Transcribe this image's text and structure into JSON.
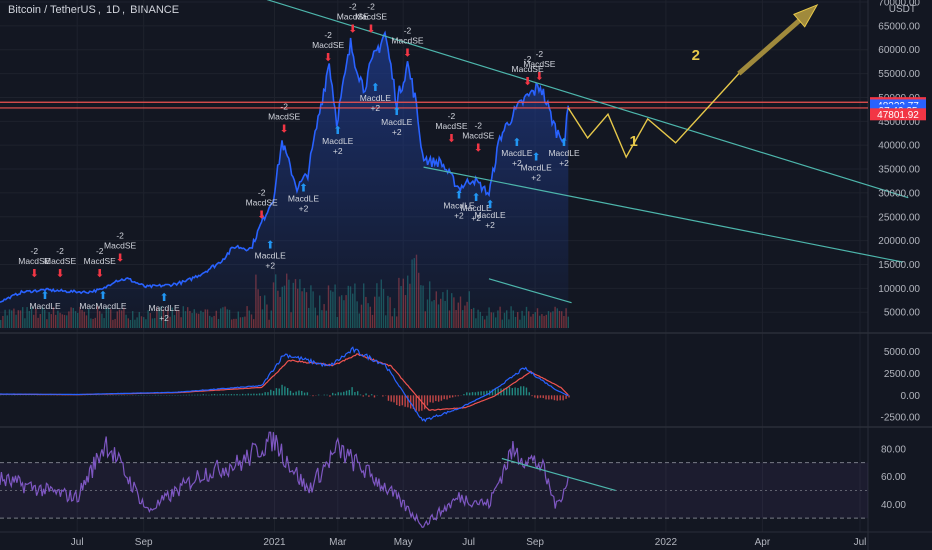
{
  "header": {
    "symbol": "Bitcoin / TetherUS",
    "interval": "1D",
    "exchange": "BINANCE",
    "sep": ",",
    "sep2": ","
  },
  "colors": {
    "background": "#131722",
    "price_line": "#2962ff",
    "area_fill": "#1e3a8a",
    "resistance": "#ef5350",
    "trendline": "#4db6ac",
    "projection": "#e6c84a",
    "arrow_projection": "#a08a3c",
    "macd": "#2962ff",
    "signal": "#ef5350",
    "hist_pos": "#26a69a",
    "hist_neg": "#ef5350",
    "rsi": "#7e57c2",
    "up_arrow": "#2196f3",
    "down_arrow": "#f23645"
  },
  "price_axis": {
    "unit": "USDT",
    "ticks": [
      "70000.00",
      "65000.00",
      "60000.00",
      "55000.00",
      "50000.00",
      "45000.00",
      "40000.00",
      "35000.00",
      "30000.00",
      "25000.00",
      "20000.00",
      "15000.00",
      "10000.00",
      "5000.00"
    ],
    "tick_values": [
      70000,
      65000,
      60000,
      55000,
      50000,
      45000,
      40000,
      35000,
      30000,
      25000,
      20000,
      15000,
      10000,
      5000
    ],
    "labels": [
      {
        "text": "48808.00",
        "value": 48808,
        "bg": "#f23645"
      },
      {
        "text": "48322.77",
        "value": 48322.77,
        "bg": "#2962ff"
      },
      {
        "text": "07:40:25",
        "value": 47280,
        "bg": "#2962ff"
      },
      {
        "text": "47801.92",
        "value": 46470,
        "bg": "#f23645"
      }
    ]
  },
  "macd_axis": {
    "ticks": [
      "5000.00",
      "2500.00",
      "0.00",
      "-2500.00"
    ],
    "tick_values": [
      5000,
      2500,
      0,
      -2500
    ]
  },
  "rsi_axis": {
    "ticks": [
      "80.00",
      "60.00",
      "40.00"
    ],
    "tick_values": [
      80,
      60,
      40
    ]
  },
  "time_axis": {
    "labels": [
      "Jul",
      "Sep",
      "2021",
      "Mar",
      "May",
      "Jul",
      "Sep",
      "2022",
      "Apr",
      "Jul"
    ],
    "dates": [
      "2020-07-01",
      "2020-09-01",
      "2021-01-01",
      "2021-03-01",
      "2021-05-01",
      "2021-07-01",
      "2021-09-01",
      "2022-01-01",
      "2022-04-01",
      "2022-07-01"
    ]
  },
  "projection_labels": {
    "wave1": "1",
    "wave2": "2"
  },
  "signals": [
    {
      "text": "-2",
      "kind": "sell",
      "date": "2020-05-22",
      "price": 11800
    },
    {
      "text": "MacdSE",
      "kind": "sell",
      "date": "2020-05-22",
      "price": 11800
    },
    {
      "text": "-2",
      "kind": "sell",
      "date": "2020-06-15",
      "price": 11800
    },
    {
      "text": "MacdSE",
      "kind": "sell",
      "date": "2020-06-15",
      "price": 11800
    },
    {
      "text": "-2",
      "kind": "sell",
      "date": "2020-07-22",
      "price": 11800
    },
    {
      "text": "MacdSE",
      "kind": "sell",
      "date": "2020-07-22",
      "price": 11800
    },
    {
      "text": "-2",
      "kind": "sell",
      "date": "2020-08-10",
      "price": 15000
    },
    {
      "text": "MacdSE",
      "kind": "sell",
      "date": "2020-08-10",
      "price": 15000
    },
    {
      "text": "MacdLE",
      "kind": "buy",
      "date": "2020-06-01",
      "price": 9500
    },
    {
      "text": "MacMacdLE",
      "kind": "buy",
      "date": "2020-07-25",
      "price": 9500
    },
    {
      "text": "MacdLE",
      "kind": "buy",
      "date": "2020-09-20",
      "price": 9000
    },
    {
      "text": "+2",
      "kind": "buy",
      "date": "2020-09-20",
      "price": 9000
    },
    {
      "text": "-2",
      "kind": "sell",
      "date": "2020-12-20",
      "price": 24000
    },
    {
      "text": "MacdSE",
      "kind": "sell",
      "date": "2020-12-20",
      "price": 24000
    },
    {
      "text": "MacdLE",
      "kind": "buy",
      "date": "2020-12-28",
      "price": 20000
    },
    {
      "text": "+2",
      "kind": "buy",
      "date": "2020-12-28",
      "price": 20000
    },
    {
      "text": "-2",
      "kind": "sell",
      "date": "2021-01-10",
      "price": 42000
    },
    {
      "text": "MacdSE",
      "kind": "sell",
      "date": "2021-01-10",
      "price": 42000
    },
    {
      "text": "MacdLE",
      "kind": "buy",
      "date": "2021-01-28",
      "price": 32000
    },
    {
      "text": "+2",
      "kind": "buy",
      "date": "2021-01-28",
      "price": 32000
    },
    {
      "text": "-2",
      "kind": "sell",
      "date": "2021-02-20",
      "price": 57000
    },
    {
      "text": "MacdSE",
      "kind": "sell",
      "date": "2021-02-20",
      "price": 57000
    },
    {
      "text": "MacdLE",
      "kind": "buy",
      "date": "2021-03-01",
      "price": 44000
    },
    {
      "text": "+2",
      "kind": "buy",
      "date": "2021-03-01",
      "price": 44000
    },
    {
      "text": "-2",
      "kind": "sell",
      "date": "2021-03-15",
      "price": 63000
    },
    {
      "text": "MacdSE",
      "kind": "sell",
      "date": "2021-03-15",
      "price": 63000
    },
    {
      "text": "-2",
      "kind": "sell",
      "date": "2021-04-01",
      "price": 63000
    },
    {
      "text": "MacdSE",
      "kind": "sell",
      "date": "2021-04-01",
      "price": 63000
    },
    {
      "text": "MacdLE",
      "kind": "buy",
      "date": "2021-04-05",
      "price": 53000
    },
    {
      "text": "+2",
      "kind": "buy",
      "date": "2021-04-05",
      "price": 53000
    },
    {
      "text": "MacdLE",
      "kind": "buy",
      "date": "2021-04-25",
      "price": 48000
    },
    {
      "text": "+2",
      "kind": "buy",
      "date": "2021-04-25",
      "price": 48000
    },
    {
      "text": "-2",
      "kind": "sell",
      "date": "2021-05-05",
      "price": 58000
    },
    {
      "text": "MacdSE",
      "kind": "sell",
      "date": "2021-05-05",
      "price": 58000
    },
    {
      "text": "-2",
      "kind": "sell",
      "date": "2021-06-15",
      "price": 40000
    },
    {
      "text": "MacdSE",
      "kind": "sell",
      "date": "2021-06-15",
      "price": 40000
    },
    {
      "text": "-2",
      "kind": "sell",
      "date": "2021-07-10",
      "price": 38000
    },
    {
      "text": "MacdSE",
      "kind": "sell",
      "date": "2021-07-10",
      "price": 38000
    },
    {
      "text": "MacdLE",
      "kind": "buy",
      "date": "2021-06-22",
      "price": 30500
    },
    {
      "text": "+2",
      "kind": "buy",
      "date": "2021-06-22",
      "price": 30500
    },
    {
      "text": "MacdLE",
      "kind": "buy",
      "date": "2021-07-08",
      "price": 30000
    },
    {
      "text": "+2",
      "kind": "buy",
      "date": "2021-07-08",
      "price": 30000
    },
    {
      "text": "MacdLE",
      "kind": "buy",
      "date": "2021-07-21",
      "price": 28500
    },
    {
      "text": "+2",
      "kind": "buy",
      "date": "2021-07-21",
      "price": 28500
    },
    {
      "text": "-2",
      "kind": "sell",
      "date": "2021-08-25",
      "price": 52000
    },
    {
      "text": "MacdSE",
      "kind": "sell",
      "date": "2021-08-25",
      "price": 52000
    },
    {
      "text": "-2",
      "kind": "sell",
      "date": "2021-09-05",
      "price": 53000
    },
    {
      "text": "MacdSE",
      "kind": "sell",
      "date": "2021-09-05",
      "price": 53000
    },
    {
      "text": "MacdLE",
      "kind": "buy",
      "date": "2021-08-15",
      "price": 41500
    },
    {
      "text": "+2",
      "kind": "buy",
      "date": "2021-08-15",
      "price": 41500
    },
    {
      "text": "MacdLE",
      "kind": "buy",
      "date": "2021-09-02",
      "price": 38500
    },
    {
      "text": "+2",
      "kind": "buy",
      "date": "2021-09-02",
      "price": 38500
    },
    {
      "text": "MacdLE",
      "kind": "buy",
      "date": "2021-09-28",
      "price": 41500
    },
    {
      "text": "+2",
      "kind": "buy",
      "date": "2021-09-28",
      "price": 41500
    }
  ],
  "chart_data": {
    "type": "line",
    "title": "Bitcoin / TetherUS, 1D, BINANCE",
    "price_range": [
      0,
      72000
    ],
    "price_series": {
      "x": [
        "2020-04-20",
        "2020-05-10",
        "2020-06-01",
        "2020-06-20",
        "2020-07-10",
        "2020-07-25",
        "2020-08-05",
        "2020-08-17",
        "2020-09-03",
        "2020-09-25",
        "2020-10-10",
        "2020-10-25",
        "2020-11-10",
        "2020-11-25",
        "2020-12-10",
        "2020-12-20",
        "2020-12-31",
        "2021-01-08",
        "2021-01-22",
        "2021-02-01",
        "2021-02-12",
        "2021-02-21",
        "2021-02-28",
        "2021-03-13",
        "2021-03-25",
        "2021-04-05",
        "2021-04-14",
        "2021-04-25",
        "2021-05-05",
        "2021-05-12",
        "2021-05-19",
        "2021-05-25",
        "2021-06-05",
        "2021-06-22",
        "2021-07-05",
        "2021-07-20",
        "2021-07-30",
        "2021-08-10",
        "2021-08-22",
        "2021-09-06",
        "2021-09-21",
        "2021-09-29",
        "2021-10-02"
      ],
      "y": [
        7200,
        9200,
        9700,
        9400,
        9200,
        9800,
        11600,
        12000,
        10300,
        10700,
        11400,
        13100,
        15300,
        18800,
        18300,
        23800,
        29000,
        40700,
        31000,
        34000,
        47000,
        57500,
        45000,
        61000,
        52000,
        59000,
        63500,
        49000,
        57000,
        50000,
        38000,
        36500,
        36500,
        31000,
        33000,
        29800,
        41500,
        46000,
        49500,
        52500,
        42800,
        41500,
        48300
      ]
    },
    "volume_range": [
      0,
      60000
    ],
    "macd_range": [
      -3500,
      7000
    ],
    "macd_series": {
      "name": "MACD",
      "x": [
        "2020-04-20",
        "2020-07-01",
        "2020-10-01",
        "2020-12-20",
        "2021-01-10",
        "2021-02-21",
        "2021-03-15",
        "2021-04-14",
        "2021-05-19",
        "2021-06-22",
        "2021-07-20",
        "2021-08-22",
        "2021-09-21",
        "2021-10-02"
      ],
      "y": [
        150,
        100,
        350,
        1100,
        4700,
        3300,
        5200,
        3500,
        -2900,
        -1500,
        200,
        3100,
        600,
        -50
      ]
    },
    "signal_series": {
      "name": "Signal",
      "x": [
        "2020-04-20",
        "2020-07-01",
        "2020-10-01",
        "2020-12-20",
        "2021-01-15",
        "2021-02-25",
        "2021-03-20",
        "2021-04-20",
        "2021-05-25",
        "2021-06-28",
        "2021-07-25",
        "2021-08-28",
        "2021-09-25",
        "2021-10-02"
      ],
      "y": [
        120,
        80,
        300,
        900,
        4000,
        3400,
        4700,
        3300,
        -1700,
        -1400,
        -100,
        2700,
        900,
        50
      ]
    },
    "rsi_range": [
      20,
      95
    ],
    "rsi_band": [
      30,
      70
    ],
    "rsi_series": {
      "name": "RSI",
      "x": [
        "2020-04-20",
        "2020-06-01",
        "2020-07-01",
        "2020-07-28",
        "2020-09-05",
        "2020-10-25",
        "2020-12-01",
        "2020-12-31",
        "2021-01-10",
        "2021-02-01",
        "2021-03-01",
        "2021-04-15",
        "2021-05-20",
        "2021-06-22",
        "2021-07-20",
        "2021-08-10",
        "2021-09-07",
        "2021-09-21",
        "2021-10-02"
      ],
      "y": [
        58,
        50,
        45,
        85,
        35,
        62,
        70,
        88,
        75,
        50,
        80,
        52,
        25,
        45,
        40,
        78,
        68,
        38,
        60
      ]
    },
    "trendlines": [
      {
        "from": [
          "2020-12-25",
          70500
        ],
        "to": [
          "2022-08-15",
          29000
        ]
      },
      {
        "from": [
          "2021-05-20",
          35400
        ],
        "to": [
          "2022-08-10",
          15500
        ]
      },
      {
        "from": [
          "2021-07-20",
          12000
        ],
        "to": [
          "2021-10-05",
          7000
        ]
      },
      {
        "from": [
          "2021-08-01",
          73
        ],
        "to": [
          "2021-11-15",
          50
        ]
      }
    ],
    "resistance_levels": [
      49000,
      47800
    ],
    "projection": {
      "x": [
        "2021-10-02",
        "2021-10-20",
        "2021-11-08",
        "2021-11-25",
        "2021-12-15",
        "2022-01-10",
        "2022-03-10",
        "2022-05-15"
      ],
      "y": [
        47800,
        41500,
        46500,
        37500,
        45500,
        40500,
        55000,
        68000
      ]
    }
  }
}
